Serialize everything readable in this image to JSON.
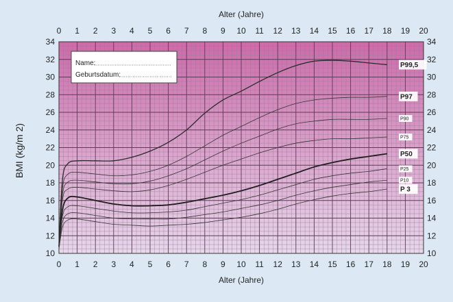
{
  "form": {
    "name_label": "Name:",
    "birthdate_label": "Geburtsdatum:"
  },
  "chart_data": {
    "type": "line",
    "title": "",
    "xlabel": "Alter (Jahre)",
    "ylabel": "BMI (kg/m 2)",
    "xlim": [
      0,
      20
    ],
    "ylim": [
      10,
      34
    ],
    "x_ticks": [
      0,
      1,
      2,
      3,
      4,
      5,
      6,
      7,
      8,
      9,
      10,
      11,
      12,
      13,
      14,
      15,
      16,
      17,
      18,
      19,
      20
    ],
    "y_ticks": [
      10,
      12,
      14,
      16,
      18,
      20,
      22,
      24,
      26,
      28,
      30,
      32,
      34
    ],
    "grid": true,
    "background_gradient": {
      "top": "#cc6aa9",
      "bottom": "#e6d7ea"
    },
    "series": [
      {
        "name": "P99,5",
        "bold_label": true,
        "width": 1.3,
        "color": "#2a2a2a",
        "points": [
          [
            0,
            11.2
          ],
          [
            0.2,
            18.5
          ],
          [
            0.5,
            20.2
          ],
          [
            1,
            20.5
          ],
          [
            2,
            20.5
          ],
          [
            3,
            20.5
          ],
          [
            4,
            20.9
          ],
          [
            5,
            21.6
          ],
          [
            6,
            22.6
          ],
          [
            7,
            24.0
          ],
          [
            8,
            25.9
          ],
          [
            9,
            27.4
          ],
          [
            10,
            28.4
          ],
          [
            11,
            29.5
          ],
          [
            12,
            30.5
          ],
          [
            13,
            31.3
          ],
          [
            14,
            31.8
          ],
          [
            15,
            31.9
          ],
          [
            16,
            31.8
          ],
          [
            17,
            31.6
          ],
          [
            18,
            31.4
          ]
        ]
      },
      {
        "name": "P97",
        "bold_label": true,
        "width": 0.8,
        "color": "#333333",
        "points": [
          [
            0,
            11.1
          ],
          [
            0.2,
            17.5
          ],
          [
            0.5,
            19.0
          ],
          [
            1,
            19.2
          ],
          [
            2,
            19.0
          ],
          [
            3,
            18.8
          ],
          [
            4,
            18.9
          ],
          [
            5,
            19.3
          ],
          [
            6,
            20.0
          ],
          [
            7,
            21.0
          ],
          [
            8,
            22.2
          ],
          [
            9,
            23.4
          ],
          [
            10,
            24.4
          ],
          [
            11,
            25.4
          ],
          [
            12,
            26.3
          ],
          [
            13,
            27.0
          ],
          [
            14,
            27.4
          ],
          [
            15,
            27.6
          ],
          [
            16,
            27.7
          ],
          [
            17,
            27.7
          ],
          [
            18,
            27.8
          ]
        ]
      },
      {
        "name": "P90",
        "bold_label": false,
        "width": 0.8,
        "color": "#333333",
        "points": [
          [
            0,
            11.0
          ],
          [
            0.2,
            16.8
          ],
          [
            0.5,
            18.1
          ],
          [
            1,
            18.3
          ],
          [
            2,
            18.1
          ],
          [
            3,
            17.9
          ],
          [
            4,
            17.9
          ],
          [
            5,
            18.2
          ],
          [
            6,
            18.8
          ],
          [
            7,
            19.6
          ],
          [
            8,
            20.6
          ],
          [
            9,
            21.6
          ],
          [
            10,
            22.5
          ],
          [
            11,
            23.3
          ],
          [
            12,
            24.1
          ],
          [
            13,
            24.7
          ],
          [
            14,
            25.0
          ],
          [
            15,
            25.2
          ],
          [
            16,
            25.2
          ],
          [
            17,
            25.2
          ],
          [
            18,
            25.3
          ]
        ]
      },
      {
        "name": "P75",
        "bold_label": false,
        "width": 0.8,
        "color": "#333333",
        "points": [
          [
            0,
            10.9
          ],
          [
            0.2,
            16.2
          ],
          [
            0.5,
            17.3
          ],
          [
            1,
            17.5
          ],
          [
            2,
            17.3
          ],
          [
            3,
            17.1
          ],
          [
            4,
            17.0
          ],
          [
            5,
            17.2
          ],
          [
            6,
            17.7
          ],
          [
            7,
            18.4
          ],
          [
            8,
            19.2
          ],
          [
            9,
            20.0
          ],
          [
            10,
            20.7
          ],
          [
            11,
            21.4
          ],
          [
            12,
            22.0
          ],
          [
            13,
            22.5
          ],
          [
            14,
            22.8
          ],
          [
            15,
            23.0
          ],
          [
            16,
            23.0
          ],
          [
            17,
            23.1
          ],
          [
            18,
            23.2
          ]
        ]
      },
      {
        "name": "P50",
        "bold_label": true,
        "width": 1.8,
        "color": "#1e1e1e",
        "points": [
          [
            0,
            10.8
          ],
          [
            0.2,
            15.0
          ],
          [
            0.5,
            16.3
          ],
          [
            1,
            16.4
          ],
          [
            2,
            16.0
          ],
          [
            3,
            15.6
          ],
          [
            4,
            15.4
          ],
          [
            5,
            15.4
          ],
          [
            6,
            15.5
          ],
          [
            7,
            15.8
          ],
          [
            8,
            16.2
          ],
          [
            9,
            16.6
          ],
          [
            10,
            17.1
          ],
          [
            11,
            17.7
          ],
          [
            12,
            18.4
          ],
          [
            13,
            19.1
          ],
          [
            14,
            19.8
          ],
          [
            15,
            20.3
          ],
          [
            16,
            20.7
          ],
          [
            17,
            21.0
          ],
          [
            18,
            21.3
          ]
        ]
      },
      {
        "name": "P25",
        "bold_label": false,
        "width": 0.8,
        "color": "#333333",
        "points": [
          [
            0,
            10.7
          ],
          [
            0.2,
            14.3
          ],
          [
            0.5,
            15.3
          ],
          [
            1,
            15.4
          ],
          [
            2,
            15.1
          ],
          [
            3,
            14.8
          ],
          [
            4,
            14.6
          ],
          [
            5,
            14.6
          ],
          [
            6,
            14.7
          ],
          [
            7,
            14.9
          ],
          [
            8,
            15.3
          ],
          [
            9,
            15.7
          ],
          [
            10,
            16.1
          ],
          [
            11,
            16.6
          ],
          [
            12,
            17.2
          ],
          [
            13,
            17.8
          ],
          [
            14,
            18.4
          ],
          [
            15,
            18.8
          ],
          [
            16,
            19.1
          ],
          [
            17,
            19.3
          ],
          [
            18,
            19.6
          ]
        ]
      },
      {
        "name": "P10",
        "bold_label": false,
        "width": 0.8,
        "color": "#333333",
        "points": [
          [
            0,
            10.6
          ],
          [
            0.2,
            13.6
          ],
          [
            0.5,
            14.5
          ],
          [
            1,
            14.6
          ],
          [
            2,
            14.3
          ],
          [
            3,
            14.0
          ],
          [
            4,
            13.9
          ],
          [
            5,
            13.9
          ],
          [
            6,
            13.9
          ],
          [
            7,
            14.1
          ],
          [
            8,
            14.4
          ],
          [
            9,
            14.7
          ],
          [
            10,
            15.1
          ],
          [
            11,
            15.5
          ],
          [
            12,
            16.0
          ],
          [
            13,
            16.6
          ],
          [
            14,
            17.1
          ],
          [
            15,
            17.5
          ],
          [
            16,
            17.8
          ],
          [
            17,
            18.1
          ],
          [
            18,
            18.3
          ]
        ]
      },
      {
        "name": "P 3",
        "bold_label": true,
        "width": 0.8,
        "color": "#333333",
        "points": [
          [
            0,
            10.5
          ],
          [
            0.2,
            13.0
          ],
          [
            0.5,
            13.8
          ],
          [
            1,
            13.9
          ],
          [
            2,
            13.6
          ],
          [
            3,
            13.3
          ],
          [
            4,
            13.2
          ],
          [
            5,
            13.1
          ],
          [
            6,
            13.2
          ],
          [
            7,
            13.3
          ],
          [
            8,
            13.5
          ],
          [
            9,
            13.8
          ],
          [
            10,
            14.1
          ],
          [
            11,
            14.5
          ],
          [
            12,
            15.0
          ],
          [
            13,
            15.6
          ],
          [
            14,
            16.1
          ],
          [
            15,
            16.5
          ],
          [
            16,
            16.8
          ],
          [
            17,
            17.0
          ],
          [
            18,
            17.3
          ]
        ]
      }
    ]
  }
}
